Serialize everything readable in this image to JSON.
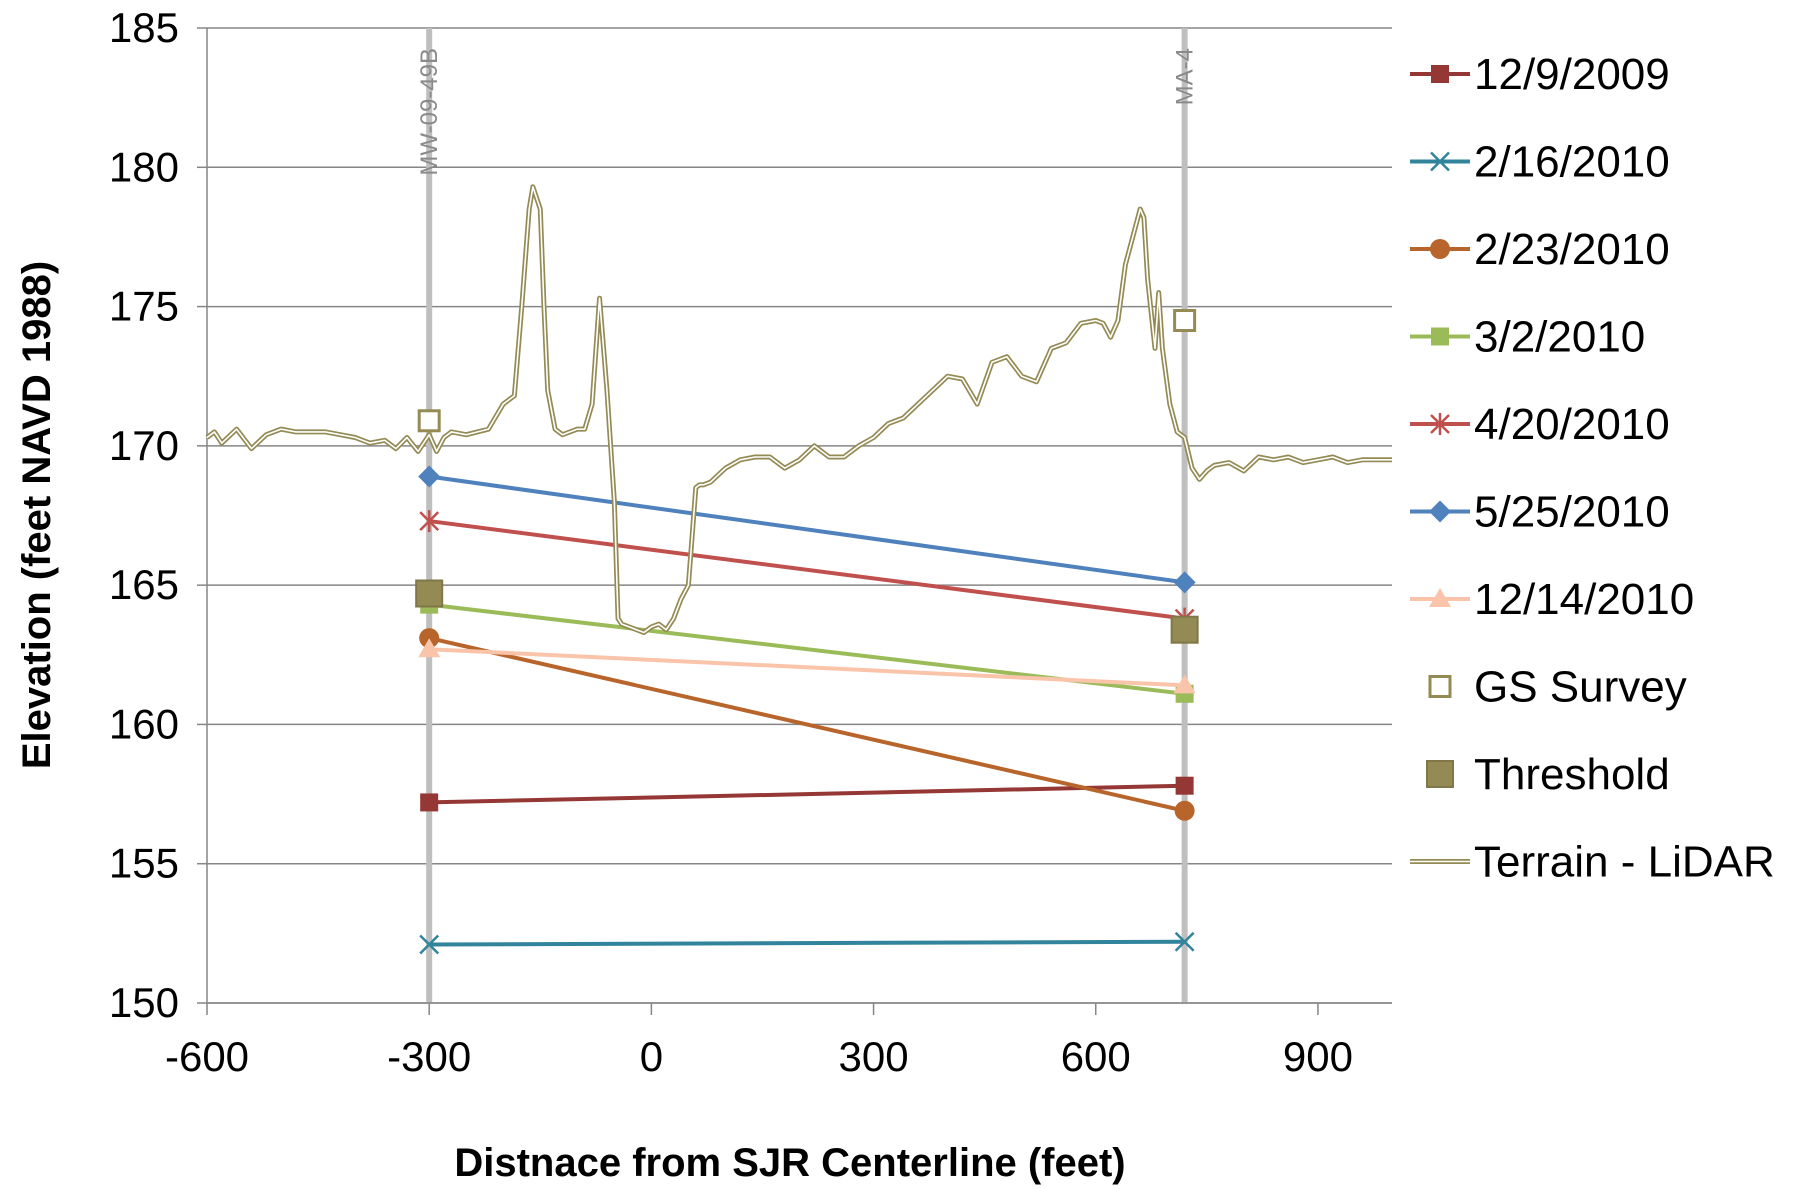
{
  "chart_data": {
    "type": "line",
    "title": "",
    "xlabel": "Distnace from SJR Centerline (feet)",
    "ylabel": "Elevation (feet NAVD 1988)",
    "xlim": [
      -600,
      1000
    ],
    "ylim": [
      150,
      185
    ],
    "xticks": [
      -600,
      -300,
      0,
      300,
      600,
      900
    ],
    "yticks": [
      150,
      155,
      160,
      165,
      170,
      175,
      180,
      185
    ],
    "grid": "horizontal",
    "legend_position": "right",
    "reference_lines": [
      {
        "label": "MW-09-49B",
        "x": -300
      },
      {
        "label": "MA-4",
        "x": 720
      }
    ],
    "series": [
      {
        "name": "12/9/2009",
        "color": "#953735",
        "marker": "square",
        "x": [
          -300,
          720
        ],
        "y": [
          157.2,
          157.8
        ]
      },
      {
        "name": "2/16/2010",
        "color": "#31849b",
        "marker": "asterisk",
        "x": [
          -300,
          720
        ],
        "y": [
          152.1,
          152.2
        ]
      },
      {
        "name": "2/23/2010",
        "color": "#b8652b",
        "marker": "circle",
        "x": [
          -300,
          720
        ],
        "y": [
          163.1,
          156.9
        ]
      },
      {
        "name": "3/2/2010",
        "color": "#9bbb59",
        "marker": "square",
        "x": [
          -300,
          720
        ],
        "y": [
          164.3,
          161.1
        ]
      },
      {
        "name": "4/20/2010",
        "color": "#c0504d",
        "marker": "star",
        "x": [
          -300,
          720
        ],
        "y": [
          167.3,
          163.8
        ]
      },
      {
        "name": "5/25/2010",
        "color": "#4f81bd",
        "marker": "diamond",
        "x": [
          -300,
          720
        ],
        "y": [
          168.9,
          165.1
        ]
      },
      {
        "name": "12/14/2010",
        "color": "#fac4ab",
        "marker": "triangle",
        "x": [
          -300,
          720
        ],
        "y": [
          162.7,
          161.4
        ]
      },
      {
        "name": "GS Survey",
        "color": "#948a54",
        "marker": "open-square",
        "x": [
          -300,
          720
        ],
        "y": [
          170.9,
          174.5
        ]
      },
      {
        "name": "Threshold",
        "color": "#948a54",
        "marker": "filled-square",
        "x": [
          -300,
          720
        ],
        "y": [
          164.7,
          163.4
        ]
      },
      {
        "name": "Terrain - LiDAR",
        "color": "#948a54",
        "marker": "double-line",
        "x": [
          -600,
          -590,
          -580,
          -560,
          -540,
          -520,
          -500,
          -480,
          -460,
          -440,
          -420,
          -400,
          -380,
          -360,
          -345,
          -330,
          -315,
          -300,
          -290,
          -280,
          -270,
          -250,
          -220,
          -200,
          -185,
          -175,
          -165,
          -160,
          -150,
          -145,
          -140,
          -130,
          -120,
          -110,
          -100,
          -90,
          -80,
          -70,
          -60,
          -50,
          -45,
          -40,
          -30,
          -20,
          -10,
          0,
          10,
          20,
          30,
          40,
          50,
          60,
          65,
          70,
          80,
          100,
          120,
          140,
          160,
          180,
          200,
          220,
          240,
          260,
          280,
          300,
          320,
          340,
          360,
          380,
          400,
          420,
          440,
          460,
          480,
          500,
          520,
          540,
          560,
          580,
          600,
          610,
          620,
          630,
          640,
          650,
          660,
          665,
          670,
          680,
          685,
          690,
          700,
          710,
          720,
          730,
          740,
          750,
          760,
          780,
          800,
          820,
          840,
          860,
          880,
          900,
          920,
          940,
          960,
          980,
          1000
        ],
        "y": [
          170.3,
          170.5,
          170.1,
          170.6,
          169.9,
          170.4,
          170.6,
          170.5,
          170.5,
          170.5,
          170.4,
          170.3,
          170.1,
          170.2,
          169.9,
          170.3,
          169.8,
          170.4,
          169.8,
          170.3,
          170.5,
          170.4,
          170.6,
          171.5,
          171.8,
          175.0,
          178.5,
          179.3,
          178.5,
          175.0,
          172.0,
          170.6,
          170.4,
          170.5,
          170.6,
          170.6,
          171.5,
          175.3,
          172.0,
          168.0,
          163.8,
          163.6,
          163.5,
          163.4,
          163.3,
          163.5,
          163.6,
          163.4,
          163.8,
          164.5,
          165.0,
          168.5,
          168.6,
          168.6,
          168.7,
          169.2,
          169.5,
          169.6,
          169.6,
          169.2,
          169.5,
          170.0,
          169.6,
          169.6,
          170.0,
          170.3,
          170.8,
          171.0,
          171.5,
          172.0,
          172.5,
          172.4,
          171.5,
          173.0,
          173.2,
          172.5,
          172.3,
          173.5,
          173.7,
          174.4,
          174.5,
          174.4,
          173.9,
          174.5,
          176.5,
          177.5,
          178.5,
          178.2,
          176.0,
          173.5,
          175.5,
          173.5,
          171.5,
          170.5,
          170.3,
          169.2,
          168.8,
          169.1,
          169.3,
          169.4,
          169.1,
          169.6,
          169.5,
          169.6,
          169.4,
          169.5,
          169.6,
          169.4,
          169.5,
          169.5,
          169.5
        ]
      }
    ]
  }
}
